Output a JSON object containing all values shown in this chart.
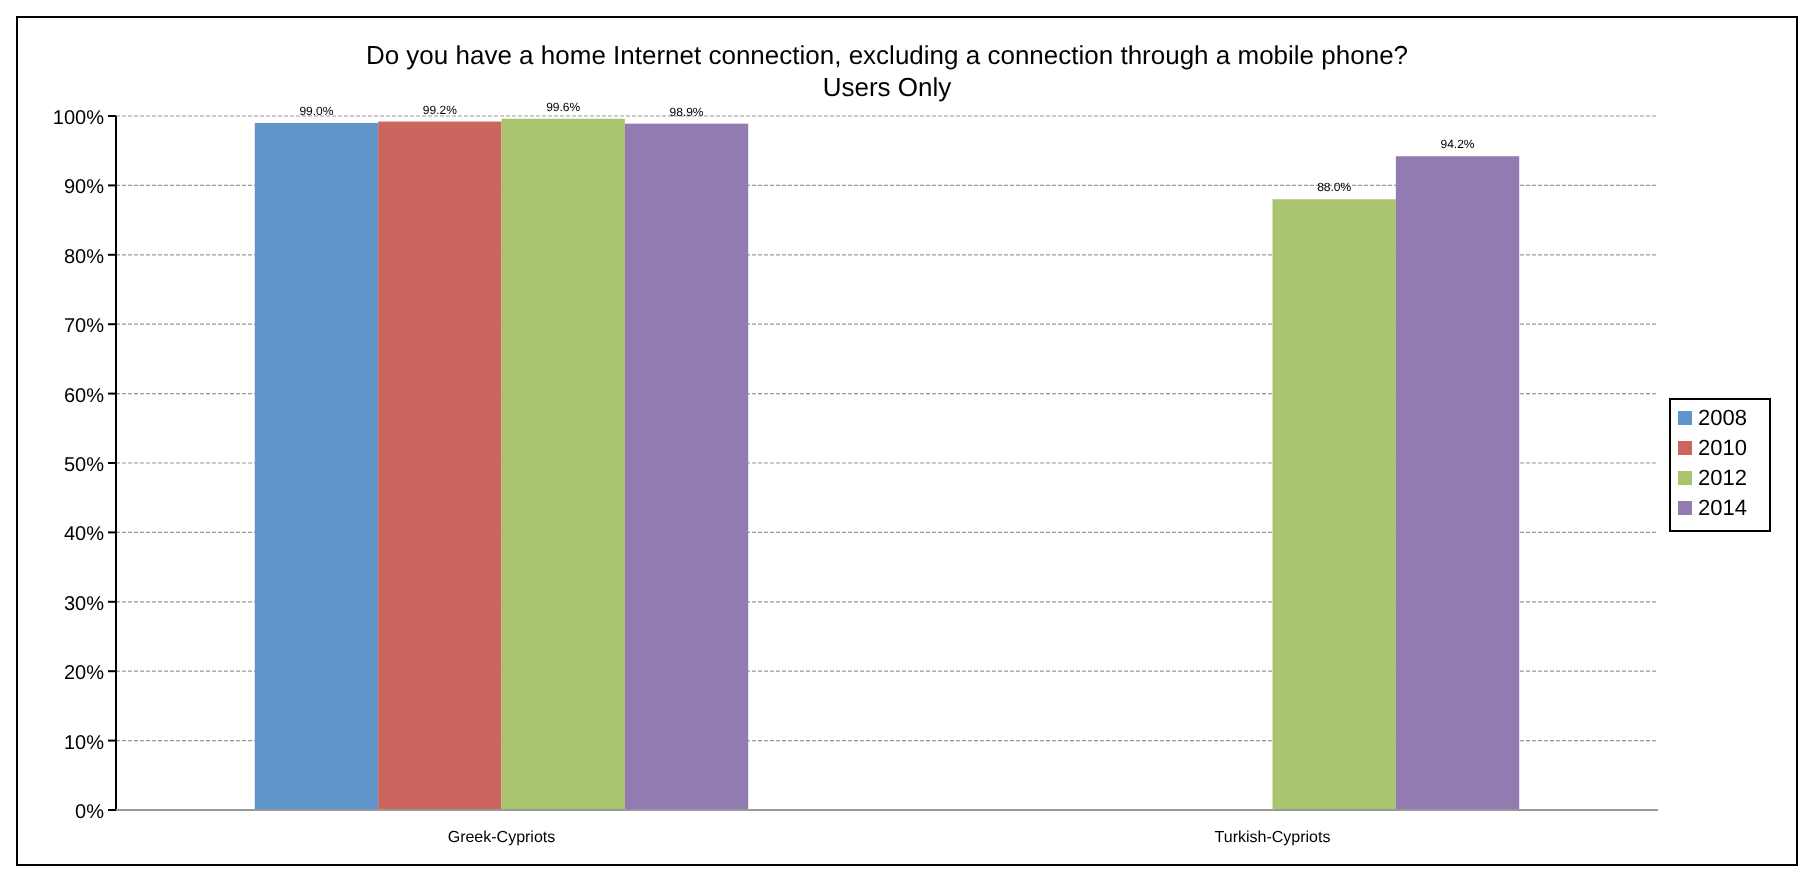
{
  "chart_data": {
    "type": "bar",
    "title": "Do you have a home Internet connection, excluding a connection through a mobile phone?",
    "subtitle": "Users Only",
    "categories": [
      "Greek-Cypriots",
      "Turkish-Cypriots"
    ],
    "series": [
      {
        "name": "2008",
        "color": "#5f95c8",
        "values": [
          99.0,
          null
        ],
        "value_labels": [
          "99.0%",
          null
        ]
      },
      {
        "name": "2010",
        "color": "#cc655e",
        "values": [
          99.2,
          null
        ],
        "value_labels": [
          "99.2%",
          null
        ]
      },
      {
        "name": "2012",
        "color": "#a9c46c",
        "values": [
          99.6,
          88.0
        ],
        "value_labels": [
          "99.6%",
          "88.0%"
        ]
      },
      {
        "name": "2014",
        "color": "#927bb1",
        "values": [
          98.9,
          94.2
        ],
        "value_labels": [
          "98.9%",
          "94.2%"
        ]
      }
    ],
    "ylim": [
      0,
      100
    ],
    "yticks": [
      {
        "value": 0,
        "label": "0%"
      },
      {
        "value": 10,
        "label": "10%"
      },
      {
        "value": 20,
        "label": "20%"
      },
      {
        "value": 30,
        "label": "30%"
      },
      {
        "value": 40,
        "label": "40%"
      },
      {
        "value": 50,
        "label": "50%"
      },
      {
        "value": 60,
        "label": "60%"
      },
      {
        "value": 70,
        "label": "70%"
      },
      {
        "value": 80,
        "label": "80%"
      },
      {
        "value": 90,
        "label": "90%"
      },
      {
        "value": 100,
        "label": "100%"
      }
    ],
    "grid": "y",
    "legend": "right"
  }
}
